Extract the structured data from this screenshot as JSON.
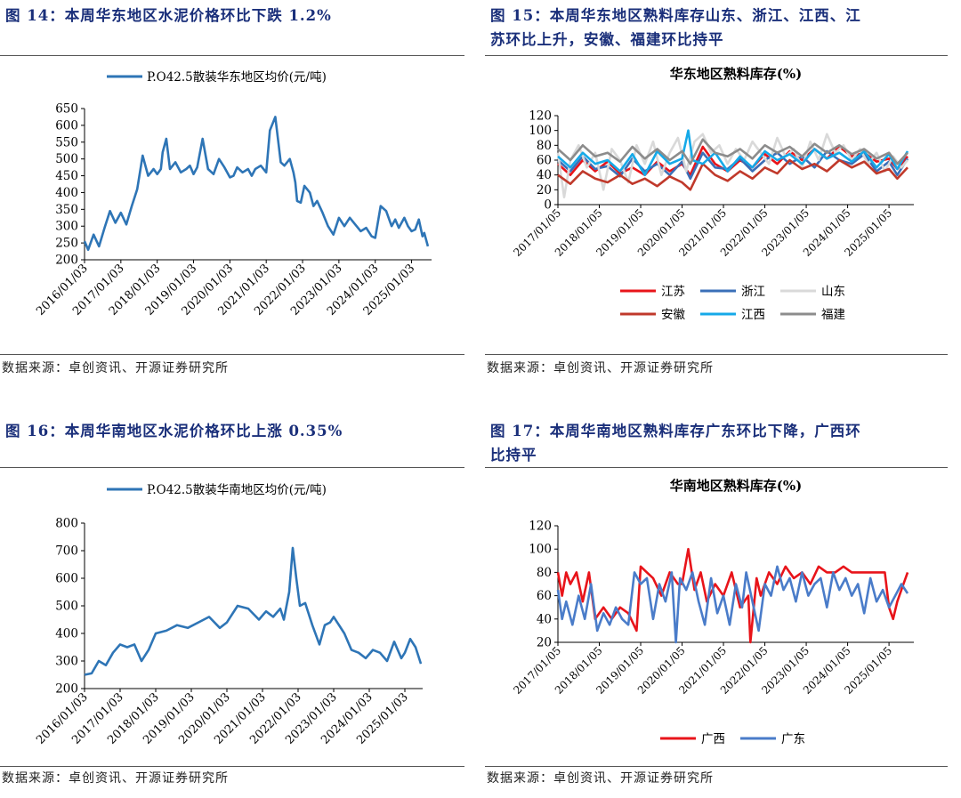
{
  "panels": [
    {
      "id": "fig14",
      "heading": "图 14：本周华东地区水泥价格环比下跌 1.2%",
      "source": "数据来源：卓创资讯、开源证券研究所"
    },
    {
      "id": "fig15",
      "heading_line1": "图 15：本周华东地区熟料库存山东、浙江、江西、江",
      "heading_line2": "苏环比上升，安徽、福建环比持平",
      "source": "数据来源：卓创资讯、开源证券研究所"
    },
    {
      "id": "fig16",
      "heading": "图 16：本周华南地区水泥价格环比上涨 0.35%",
      "source": "数据来源：卓创资讯、开源证券研究所"
    },
    {
      "id": "fig17",
      "heading_line1": "图 17：本周华南地区熟料库存广东环比下降，广西环",
      "heading_line2": "比持平",
      "source": "数据来源：卓创资讯、开源证券研究所"
    }
  ],
  "chart_data": [
    {
      "type": "line",
      "title": "",
      "legend_position": "top",
      "x_tick_labels": [
        "2016/01/03",
        "2017/01/03",
        "2018/01/03",
        "2019/01/03",
        "2020/01/03",
        "2021/01/03",
        "2022/01/03",
        "2023/01/03",
        "2024/01/03",
        "2025/01/03"
      ],
      "ylim": [
        200,
        650
      ],
      "y_ticks": [
        200,
        250,
        300,
        350,
        400,
        450,
        500,
        550,
        600,
        650
      ],
      "series": [
        {
          "name": "P.O42.5散装华东地区均价(元/吨)",
          "color": "#2e75b6",
          "x": [
            2016.0,
            2016.1,
            2016.25,
            2016.4,
            2016.55,
            2016.7,
            2016.85,
            2017.0,
            2017.15,
            2017.3,
            2017.45,
            2017.6,
            2017.75,
            2017.9,
            2018.0,
            2018.1,
            2018.15,
            2018.25,
            2018.35,
            2018.5,
            2018.65,
            2018.8,
            2018.9,
            2019.0,
            2019.1,
            2019.25,
            2019.4,
            2019.55,
            2019.7,
            2019.85,
            2020.0,
            2020.1,
            2020.2,
            2020.35,
            2020.5,
            2020.6,
            2020.7,
            2020.85,
            2021.0,
            2021.1,
            2021.25,
            2021.4,
            2021.5,
            2021.65,
            2021.75,
            2021.8,
            2021.85,
            2021.95,
            2022.05,
            2022.2,
            2022.3,
            2022.4,
            2022.55,
            2022.7,
            2022.85,
            2023.0,
            2023.15,
            2023.3,
            2023.45,
            2023.6,
            2023.75,
            2023.9,
            2024.0,
            2024.15,
            2024.3,
            2024.45,
            2024.55,
            2024.65,
            2024.8,
            2024.9,
            2025.0,
            2025.1,
            2025.2,
            2025.3,
            2025.35,
            2025.45
          ],
          "y": [
            255,
            230,
            275,
            240,
            295,
            345,
            310,
            340,
            305,
            360,
            410,
            510,
            450,
            470,
            455,
            470,
            520,
            560,
            470,
            490,
            460,
            470,
            480,
            455,
            475,
            560,
            470,
            455,
            500,
            475,
            445,
            450,
            475,
            460,
            470,
            450,
            470,
            480,
            460,
            585,
            625,
            490,
            480,
            500,
            460,
            430,
            375,
            370,
            420,
            400,
            360,
            375,
            340,
            300,
            275,
            325,
            300,
            325,
            305,
            285,
            295,
            270,
            265,
            360,
            345,
            300,
            320,
            295,
            325,
            300,
            285,
            290,
            320,
            270,
            280,
            240
          ]
        }
      ]
    },
    {
      "type": "line",
      "title": "华东地区熟料库存(%)",
      "legend_position": "bottom",
      "x_tick_labels": [
        "2017/01/05",
        "2018/01/05",
        "2019/01/05",
        "2020/01/05",
        "2021/01/05",
        "2022/01/05",
        "2023/01/05",
        "2024/01/05",
        "2025/01/05"
      ],
      "ylim": [
        0,
        120
      ],
      "y_ticks": [
        0,
        20,
        40,
        60,
        80,
        100,
        120
      ],
      "series": [
        {
          "name": "江苏",
          "color": "#e8141a",
          "x": [
            2017.0,
            2017.3,
            2017.6,
            2017.9,
            2018.2,
            2018.5,
            2018.8,
            2019.1,
            2019.4,
            2019.7,
            2020.0,
            2020.2,
            2020.5,
            2020.8,
            2021.1,
            2021.4,
            2021.7,
            2022.0,
            2022.3,
            2022.6,
            2022.9,
            2023.2,
            2023.5,
            2023.8,
            2024.1,
            2024.4,
            2024.7,
            2025.0,
            2025.2,
            2025.45
          ],
          "y": [
            55,
            40,
            60,
            45,
            58,
            42,
            50,
            40,
            58,
            45,
            55,
            40,
            78,
            55,
            45,
            60,
            50,
            68,
            55,
            72,
            60,
            75,
            62,
            78,
            65,
            70,
            58,
            62,
            48,
            65
          ]
        },
        {
          "name": "浙江",
          "color": "#3a6fb8",
          "x": [
            2017.0,
            2017.3,
            2017.6,
            2017.9,
            2018.2,
            2018.5,
            2018.8,
            2019.1,
            2019.4,
            2019.7,
            2020.0,
            2020.2,
            2020.5,
            2020.8,
            2021.1,
            2021.4,
            2021.7,
            2022.0,
            2022.3,
            2022.6,
            2022.9,
            2023.2,
            2023.5,
            2023.8,
            2024.1,
            2024.4,
            2024.7,
            2025.0,
            2025.2,
            2025.45
          ],
          "y": [
            60,
            45,
            65,
            48,
            52,
            38,
            62,
            45,
            55,
            40,
            58,
            35,
            70,
            50,
            48,
            62,
            45,
            60,
            70,
            55,
            65,
            50,
            72,
            60,
            55,
            68,
            45,
            58,
            40,
            62
          ]
        },
        {
          "name": "山东",
          "color": "#d9d9d9",
          "x": [
            2017.0,
            2017.15,
            2017.3,
            2017.5,
            2017.7,
            2017.9,
            2018.1,
            2018.3,
            2018.5,
            2018.7,
            2018.9,
            2019.1,
            2019.3,
            2019.5,
            2019.7,
            2019.9,
            2020.1,
            2020.3,
            2020.5,
            2020.7,
            2020.9,
            2021.1,
            2021.3,
            2021.5,
            2021.7,
            2021.9,
            2022.1,
            2022.3,
            2022.5,
            2022.7,
            2022.9,
            2023.1,
            2023.3,
            2023.5,
            2023.7,
            2023.9,
            2024.1,
            2024.3,
            2024.5,
            2024.7,
            2024.9,
            2025.1,
            2025.3,
            2025.45
          ],
          "y": [
            70,
            10,
            60,
            80,
            50,
            70,
            20,
            75,
            60,
            30,
            80,
            55,
            85,
            40,
            70,
            90,
            45,
            85,
            95,
            70,
            80,
            55,
            75,
            60,
            85,
            70,
            55,
            90,
            65,
            75,
            50,
            85,
            60,
            95,
            70,
            80,
            60,
            75,
            55,
            70,
            45,
            65,
            50,
            60
          ]
        },
        {
          "name": "安徽",
          "color": "#c0392b",
          "x": [
            2017.0,
            2017.3,
            2017.6,
            2017.9,
            2018.2,
            2018.5,
            2018.8,
            2019.1,
            2019.4,
            2019.7,
            2020.0,
            2020.2,
            2020.5,
            2020.8,
            2021.1,
            2021.4,
            2021.7,
            2022.0,
            2022.3,
            2022.6,
            2022.9,
            2023.2,
            2023.5,
            2023.8,
            2024.1,
            2024.4,
            2024.7,
            2025.0,
            2025.2,
            2025.45
          ],
          "y": [
            40,
            28,
            45,
            35,
            30,
            40,
            28,
            35,
            25,
            38,
            30,
            20,
            55,
            40,
            32,
            45,
            35,
            50,
            42,
            60,
            48,
            55,
            45,
            60,
            50,
            58,
            42,
            48,
            35,
            50
          ]
        },
        {
          "name": "江西",
          "color": "#15a9e8",
          "x": [
            2017.0,
            2017.3,
            2017.6,
            2017.9,
            2018.2,
            2018.5,
            2018.8,
            2019.1,
            2019.4,
            2019.7,
            2020.0,
            2020.15,
            2020.25,
            2020.5,
            2020.8,
            2021.1,
            2021.4,
            2021.7,
            2022.0,
            2022.3,
            2022.6,
            2022.9,
            2023.2,
            2023.5,
            2023.8,
            2024.1,
            2024.4,
            2024.7,
            2025.0,
            2025.2,
            2025.45
          ],
          "y": [
            65,
            50,
            70,
            55,
            60,
            45,
            68,
            40,
            72,
            55,
            62,
            100,
            60,
            55,
            70,
            45,
            65,
            50,
            72,
            60,
            68,
            55,
            75,
            62,
            70,
            58,
            72,
            50,
            68,
            48,
            72
          ]
        },
        {
          "name": "福建",
          "color": "#8c8c8c",
          "x": [
            2017.0,
            2017.3,
            2017.6,
            2017.9,
            2018.2,
            2018.5,
            2018.8,
            2019.1,
            2019.4,
            2019.7,
            2020.0,
            2020.2,
            2020.5,
            2020.8,
            2021.1,
            2021.4,
            2021.7,
            2022.0,
            2022.3,
            2022.6,
            2022.9,
            2023.2,
            2023.5,
            2023.8,
            2024.1,
            2024.4,
            2024.7,
            2025.0,
            2025.2,
            2025.45
          ],
          "y": [
            75,
            60,
            80,
            65,
            70,
            58,
            78,
            62,
            75,
            60,
            72,
            55,
            88,
            70,
            65,
            75,
            62,
            80,
            70,
            78,
            65,
            82,
            70,
            80,
            68,
            75,
            62,
            70,
            55,
            70
          ]
        }
      ]
    },
    {
      "type": "line",
      "title": "",
      "legend_position": "top",
      "x_tick_labels": [
        "2016/01/03",
        "2017/01/03",
        "2018/01/03",
        "2019/01/03",
        "2020/01/03",
        "2021/01/03",
        "2022/01/03",
        "2023/01/03",
        "2024/01/03",
        "2025/01/03"
      ],
      "ylim": [
        200,
        800
      ],
      "y_ticks": [
        200,
        300,
        400,
        500,
        600,
        700,
        800
      ],
      "series": [
        {
          "name": "P.O42.5散装华南地区均价(元/吨)",
          "color": "#2e75b6",
          "x": [
            2016.0,
            2016.2,
            2016.4,
            2016.6,
            2016.8,
            2017.0,
            2017.2,
            2017.4,
            2017.6,
            2017.8,
            2018.0,
            2018.3,
            2018.6,
            2018.9,
            2019.2,
            2019.5,
            2019.8,
            2020.0,
            2020.3,
            2020.6,
            2020.9,
            2021.1,
            2021.3,
            2021.5,
            2021.6,
            2021.75,
            2021.85,
            2021.95,
            2022.05,
            2022.2,
            2022.4,
            2022.6,
            2022.75,
            2022.9,
            2023.0,
            2023.3,
            2023.5,
            2023.7,
            2023.9,
            2024.1,
            2024.3,
            2024.5,
            2024.7,
            2024.9,
            2025.0,
            2025.15,
            2025.3,
            2025.45
          ],
          "y": [
            250,
            255,
            300,
            285,
            330,
            360,
            350,
            360,
            300,
            340,
            400,
            410,
            430,
            420,
            440,
            460,
            420,
            440,
            500,
            490,
            450,
            480,
            460,
            490,
            450,
            550,
            710,
            600,
            500,
            510,
            430,
            360,
            430,
            440,
            460,
            400,
            340,
            330,
            310,
            340,
            330,
            300,
            370,
            310,
            330,
            380,
            350,
            290
          ]
        }
      ]
    },
    {
      "type": "line",
      "title": "华南地区熟料库存(%)",
      "legend_position": "bottom",
      "x_tick_labels": [
        "2017/01/05",
        "2018/01/05",
        "2019/01/05",
        "2020/01/05",
        "2021/01/05",
        "2022/01/05",
        "2023/01/05",
        "2024/01/05",
        "2025/01/05"
      ],
      "ylim": [
        20,
        120
      ],
      "y_ticks": [
        20,
        40,
        60,
        80,
        100,
        120
      ],
      "series": [
        {
          "name": "广西",
          "color": "#e8141a",
          "x": [
            2017.0,
            2017.1,
            2017.2,
            2017.3,
            2017.45,
            2017.6,
            2017.75,
            2017.9,
            2018.1,
            2018.3,
            2018.5,
            2018.7,
            2018.9,
            2019.0,
            2019.15,
            2019.3,
            2019.5,
            2019.7,
            2019.9,
            2020.0,
            2020.15,
            2020.3,
            2020.45,
            2020.6,
            2020.8,
            2021.0,
            2021.2,
            2021.4,
            2021.6,
            2021.65,
            2021.8,
            2021.9,
            2022.1,
            2022.3,
            2022.5,
            2022.7,
            2022.9,
            2023.1,
            2023.3,
            2023.5,
            2023.7,
            2023.9,
            2024.1,
            2024.3,
            2024.5,
            2024.7,
            2024.9,
            2025.0,
            2025.1,
            2025.2,
            2025.3,
            2025.45
          ],
          "y": [
            80,
            60,
            80,
            70,
            80,
            55,
            80,
            40,
            50,
            40,
            50,
            45,
            30,
            85,
            80,
            75,
            60,
            80,
            70,
            70,
            100,
            65,
            80,
            55,
            70,
            60,
            80,
            50,
            60,
            20,
            75,
            60,
            80,
            70,
            85,
            75,
            80,
            70,
            85,
            80,
            80,
            85,
            80,
            80,
            80,
            80,
            80,
            50,
            40,
            55,
            65,
            80
          ]
        },
        {
          "name": "广东",
          "color": "#4a7cc9",
          "x": [
            2017.0,
            2017.1,
            2017.2,
            2017.35,
            2017.5,
            2017.65,
            2017.8,
            2017.95,
            2018.1,
            2018.25,
            2018.4,
            2018.55,
            2018.7,
            2018.85,
            2019.0,
            2019.15,
            2019.3,
            2019.45,
            2019.6,
            2019.75,
            2019.85,
            2019.95,
            2020.1,
            2020.25,
            2020.4,
            2020.55,
            2020.7,
            2020.85,
            2021.0,
            2021.15,
            2021.3,
            2021.45,
            2021.55,
            2021.7,
            2021.85,
            2022.0,
            2022.15,
            2022.3,
            2022.45,
            2022.6,
            2022.75,
            2022.9,
            2023.05,
            2023.2,
            2023.35,
            2023.5,
            2023.65,
            2023.8,
            2023.95,
            2024.1,
            2024.25,
            2024.4,
            2024.55,
            2024.7,
            2024.85,
            2025.0,
            2025.15,
            2025.3,
            2025.45
          ],
          "y": [
            65,
            40,
            55,
            35,
            60,
            40,
            70,
            30,
            45,
            35,
            50,
            40,
            35,
            80,
            70,
            75,
            40,
            70,
            55,
            80,
            20,
            75,
            65,
            80,
            55,
            35,
            75,
            45,
            60,
            35,
            70,
            50,
            80,
            55,
            30,
            70,
            60,
            85,
            65,
            75,
            55,
            80,
            60,
            70,
            75,
            50,
            80,
            65,
            75,
            60,
            70,
            45,
            75,
            55,
            65,
            50,
            60,
            70,
            62
          ]
        }
      ]
    }
  ]
}
